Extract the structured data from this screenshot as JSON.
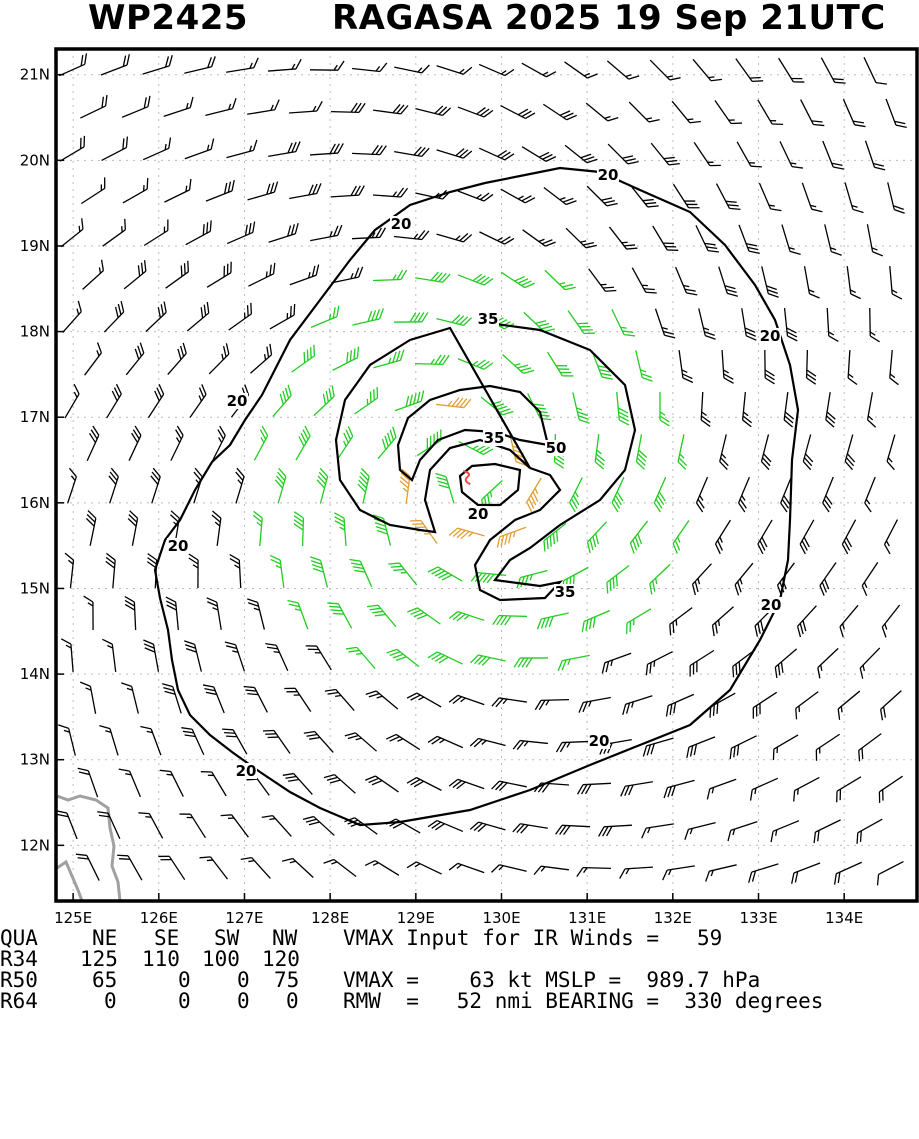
{
  "header": {
    "storm_id": "WP2425",
    "title": "RAGASA 2025 19 Sep 21UTC"
  },
  "map": {
    "lon_range": [
      124.8,
      134.85
    ],
    "lat_range": [
      11.35,
      21.3
    ],
    "lon_ticks": [
      "125E",
      "126E",
      "127E",
      "128E",
      "129E",
      "130E",
      "131E",
      "132E",
      "133E",
      "134E"
    ],
    "lat_ticks": [
      "12N",
      "13N",
      "14N",
      "15N",
      "16N",
      "17N",
      "18N",
      "19N",
      "20N",
      "21N"
    ],
    "center": {
      "lon": 129.6,
      "lat": 16.3
    },
    "contour_labels": [
      "20",
      "20",
      "20",
      "20",
      "20",
      "20",
      "20",
      "20",
      "35",
      "35",
      "35",
      "50",
      "20"
    ],
    "colors": {
      "barb_lt34": "#000000",
      "barb_34_49": "#22cc22",
      "barb_50_63": "#e0a030",
      "center_marker": "#ff4444",
      "coastline": "#a0a0a0",
      "grid": "#bbbbbb"
    }
  },
  "table": {
    "header": [
      "QUA",
      "NE",
      "SE",
      "SW",
      "NW"
    ],
    "rows": [
      [
        "R34",
        "125",
        "110",
        "100",
        "120"
      ],
      [
        "R50",
        "65",
        "0",
        "0",
        "75"
      ],
      [
        "R64",
        "0",
        "0",
        "0",
        "0"
      ]
    ]
  },
  "info": {
    "line1": "VMAX Input for IR Winds =   59",
    "line2": "VMAX =    63 kt MSLP =  989.7 hPa",
    "line3": "RMW  =   52 nmi BEARING =  330 degrees"
  }
}
